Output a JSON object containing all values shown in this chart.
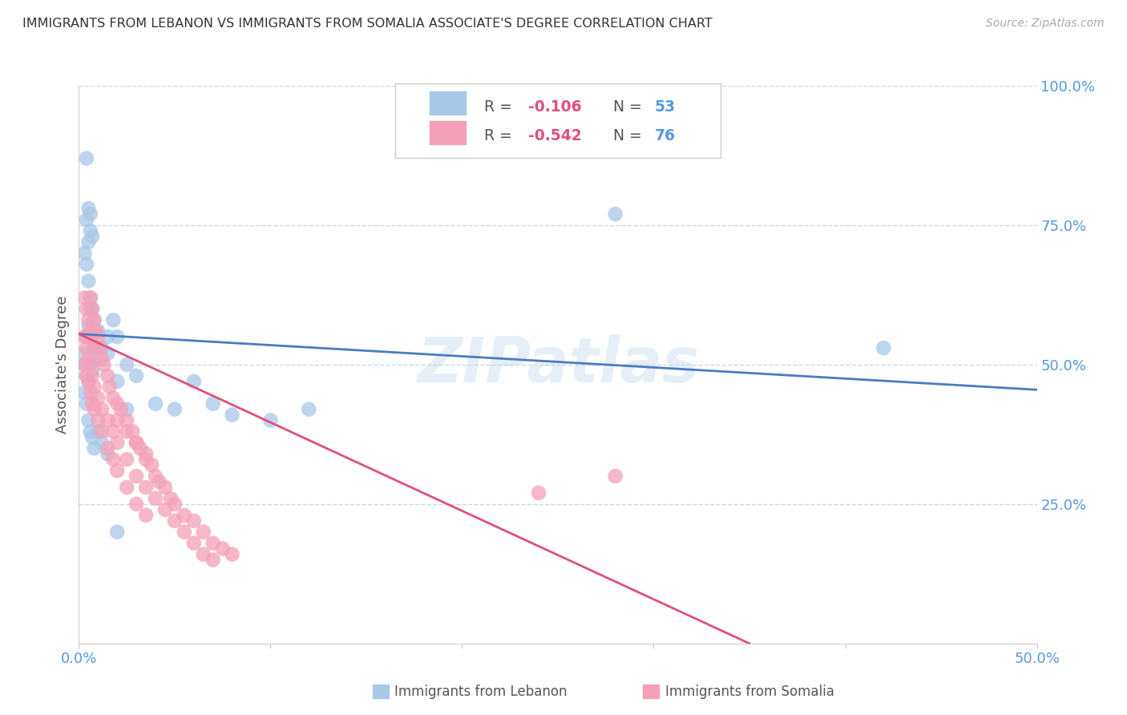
{
  "title": "IMMIGRANTS FROM LEBANON VS IMMIGRANTS FROM SOMALIA ASSOCIATE'S DEGREE CORRELATION CHART",
  "source": "Source: ZipAtlas.com",
  "ylabel_label": "Associate's Degree",
  "x_min": 0.0,
  "x_max": 0.5,
  "y_min": 0.0,
  "y_max": 1.0,
  "color_lebanon": "#a8c8e8",
  "color_somalia": "#f4a0b8",
  "color_line_lebanon": "#4a7cc0",
  "color_line_somalia": "#e0507a",
  "color_axis_text": "#5599dd",
  "color_grid": "#c8d8e8",
  "watermark": "ZIPatlas",
  "blue_line_x0": 0.0,
  "blue_line_y0": 0.555,
  "blue_line_x1": 0.5,
  "blue_line_y1": 0.455,
  "pink_line_x0": 0.0,
  "pink_line_y0": 0.555,
  "pink_line_x1": 0.35,
  "pink_line_y1": 0.0,
  "lebanon_x": [
    0.004,
    0.005,
    0.006,
    0.004,
    0.006,
    0.007,
    0.005,
    0.003,
    0.004,
    0.005,
    0.006,
    0.007,
    0.008,
    0.01,
    0.015,
    0.012,
    0.018,
    0.02,
    0.003,
    0.004,
    0.005,
    0.006,
    0.007,
    0.003,
    0.004,
    0.005,
    0.006,
    0.008,
    0.01,
    0.015,
    0.02,
    0.025,
    0.03,
    0.04,
    0.05,
    0.06,
    0.07,
    0.08,
    0.1,
    0.12,
    0.003,
    0.004,
    0.005,
    0.006,
    0.007,
    0.008,
    0.01,
    0.012,
    0.015,
    0.02,
    0.025,
    0.42,
    0.28
  ],
  "lebanon_y": [
    0.87,
    0.78,
    0.77,
    0.76,
    0.74,
    0.73,
    0.72,
    0.7,
    0.68,
    0.65,
    0.62,
    0.6,
    0.58,
    0.56,
    0.55,
    0.53,
    0.58,
    0.55,
    0.5,
    0.48,
    0.47,
    0.5,
    0.49,
    0.52,
    0.55,
    0.57,
    0.6,
    0.53,
    0.51,
    0.52,
    0.47,
    0.5,
    0.48,
    0.43,
    0.42,
    0.47,
    0.43,
    0.41,
    0.4,
    0.42,
    0.45,
    0.43,
    0.4,
    0.38,
    0.37,
    0.35,
    0.38,
    0.36,
    0.34,
    0.2,
    0.42,
    0.53,
    0.77
  ],
  "somalia_x": [
    0.003,
    0.004,
    0.005,
    0.006,
    0.007,
    0.008,
    0.006,
    0.007,
    0.008,
    0.009,
    0.01,
    0.011,
    0.012,
    0.013,
    0.015,
    0.016,
    0.018,
    0.02,
    0.022,
    0.025,
    0.028,
    0.03,
    0.032,
    0.035,
    0.038,
    0.04,
    0.042,
    0.045,
    0.048,
    0.05,
    0.055,
    0.06,
    0.065,
    0.07,
    0.075,
    0.08,
    0.003,
    0.004,
    0.005,
    0.006,
    0.007,
    0.008,
    0.01,
    0.012,
    0.015,
    0.018,
    0.02,
    0.025,
    0.03,
    0.035,
    0.04,
    0.045,
    0.05,
    0.055,
    0.06,
    0.065,
    0.07,
    0.003,
    0.004,
    0.005,
    0.006,
    0.007,
    0.008,
    0.01,
    0.012,
    0.015,
    0.018,
    0.02,
    0.025,
    0.03,
    0.035,
    0.28,
    0.24,
    0.02,
    0.025,
    0.03,
    0.035
  ],
  "somalia_y": [
    0.62,
    0.6,
    0.58,
    0.56,
    0.55,
    0.53,
    0.62,
    0.6,
    0.58,
    0.56,
    0.55,
    0.53,
    0.51,
    0.5,
    0.48,
    0.46,
    0.44,
    0.43,
    0.42,
    0.4,
    0.38,
    0.36,
    0.35,
    0.33,
    0.32,
    0.3,
    0.29,
    0.28,
    0.26,
    0.25,
    0.23,
    0.22,
    0.2,
    0.18,
    0.17,
    0.16,
    0.55,
    0.53,
    0.51,
    0.5,
    0.48,
    0.46,
    0.44,
    0.42,
    0.4,
    0.38,
    0.36,
    0.33,
    0.3,
    0.28,
    0.26,
    0.24,
    0.22,
    0.2,
    0.18,
    0.16,
    0.15,
    0.5,
    0.48,
    0.47,
    0.45,
    0.43,
    0.42,
    0.4,
    0.38,
    0.35,
    0.33,
    0.31,
    0.28,
    0.25,
    0.23,
    0.3,
    0.27,
    0.4,
    0.38,
    0.36,
    0.34
  ]
}
